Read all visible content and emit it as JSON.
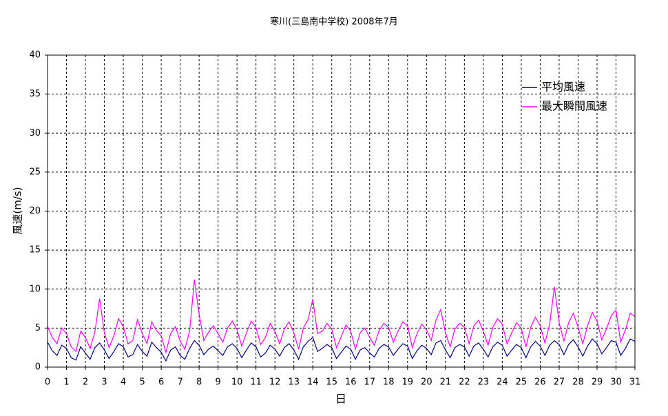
{
  "chart_data": {
    "type": "line",
    "title": "寒川(三島南中学校)  2008年7月",
    "x_label": "日",
    "y_label": "風速(m/s)",
    "xlim": [
      0,
      31
    ],
    "xticks": [
      0,
      1,
      2,
      3,
      4,
      5,
      6,
      7,
      8,
      9,
      10,
      11,
      12,
      13,
      14,
      15,
      16,
      17,
      18,
      19,
      20,
      21,
      22,
      23,
      24,
      25,
      26,
      27,
      28,
      29,
      30,
      31
    ],
    "ylim": [
      0,
      40
    ],
    "yticks": [
      0,
      5,
      10,
      15,
      20,
      25,
      30,
      35,
      40
    ],
    "grid": true,
    "legend": "upper-right",
    "x": [
      0,
      0.25,
      0.5,
      0.75,
      1,
      1.25,
      1.5,
      1.75,
      2,
      2.25,
      2.5,
      2.75,
      3,
      3.25,
      3.5,
      3.75,
      4,
      4.25,
      4.5,
      4.75,
      5,
      5.25,
      5.5,
      5.75,
      6,
      6.25,
      6.5,
      6.75,
      7,
      7.25,
      7.5,
      7.75,
      8,
      8.25,
      8.5,
      8.75,
      9,
      9.25,
      9.5,
      9.75,
      10,
      10.25,
      10.5,
      10.75,
      11,
      11.25,
      11.5,
      11.75,
      12,
      12.25,
      12.5,
      12.75,
      13,
      13.25,
      13.5,
      13.75,
      14,
      14.25,
      14.5,
      14.75,
      15,
      15.25,
      15.5,
      15.75,
      16,
      16.25,
      16.5,
      16.75,
      17,
      17.25,
      17.5,
      17.75,
      18,
      18.25,
      18.5,
      18.75,
      19,
      19.25,
      19.5,
      19.75,
      20,
      20.25,
      20.5,
      20.75,
      21,
      21.25,
      21.5,
      21.75,
      22,
      22.25,
      22.5,
      22.75,
      23,
      23.25,
      23.5,
      23.75,
      24,
      24.25,
      24.5,
      24.75,
      25,
      25.25,
      25.5,
      25.75,
      26,
      26.25,
      26.5,
      26.75,
      27,
      27.25,
      27.5,
      27.75,
      28,
      28.25,
      28.5,
      28.75,
      29,
      29.25,
      29.5,
      29.75,
      30,
      30.25,
      30.5,
      30.75,
      31
    ],
    "series": [
      {
        "name": "平均風速",
        "color": "#000080",
        "values": [
          3.2,
          2.1,
          1.5,
          2.8,
          2.4,
          1.2,
          0.9,
          2.6,
          1.8,
          1.0,
          2.5,
          3.1,
          2.2,
          1.1,
          2.0,
          3.0,
          2.6,
          1.3,
          1.6,
          2.9,
          2.0,
          1.4,
          3.2,
          2.5,
          1.9,
          0.8,
          2.2,
          2.6,
          1.5,
          1.0,
          2.4,
          3.4,
          2.8,
          1.6,
          2.3,
          2.7,
          2.1,
          1.5,
          2.6,
          3.0,
          2.4,
          1.2,
          2.2,
          3.1,
          2.6,
          1.3,
          1.8,
          2.8,
          2.3,
          1.4,
          2.5,
          3.0,
          2.2,
          1.0,
          2.6,
          3.3,
          3.8,
          2.0,
          2.4,
          2.9,
          2.5,
          1.1,
          1.9,
          2.7,
          2.3,
          1.0,
          2.2,
          2.5,
          1.8,
          1.3,
          2.4,
          2.9,
          2.6,
          1.5,
          2.3,
          3.0,
          2.7,
          1.1,
          2.1,
          2.8,
          2.4,
          1.6,
          3.1,
          3.4,
          2.2,
          1.2,
          2.5,
          2.9,
          2.6,
          1.4,
          2.7,
          3.1,
          2.3,
          1.3,
          2.6,
          3.2,
          2.8,
          1.4,
          2.2,
          2.9,
          2.5,
          1.2,
          2.6,
          3.3,
          2.7,
          1.5,
          2.8,
          3.4,
          2.9,
          1.6,
          2.9,
          3.5,
          2.6,
          1.4,
          2.7,
          3.6,
          3.0,
          1.7,
          2.5,
          3.4,
          3.2,
          1.5,
          2.4,
          3.6,
          3.3
        ]
      },
      {
        "name": "最大瞬間風速",
        "color": "#ff00ff",
        "values": [
          5.2,
          3.8,
          3.0,
          5.0,
          4.3,
          2.6,
          2.0,
          4.6,
          3.8,
          2.4,
          4.5,
          8.8,
          4.4,
          2.5,
          4.0,
          6.2,
          5.2,
          3.0,
          3.4,
          6.1,
          4.3,
          3.0,
          5.8,
          4.7,
          4.0,
          1.9,
          4.3,
          5.2,
          3.3,
          2.3,
          4.6,
          11.2,
          6.8,
          3.4,
          4.5,
          5.3,
          4.3,
          3.2,
          5.0,
          5.9,
          4.8,
          2.7,
          4.4,
          5.9,
          5.1,
          2.9,
          3.8,
          5.6,
          4.6,
          3.0,
          4.9,
          5.8,
          4.4,
          2.3,
          5.0,
          6.1,
          8.7,
          4.3,
          4.6,
          5.6,
          4.9,
          2.5,
          3.9,
          5.4,
          4.6,
          2.3,
          4.4,
          5.0,
          3.8,
          2.8,
          4.7,
          5.6,
          5.1,
          3.2,
          4.6,
          5.8,
          5.3,
          2.5,
          4.3,
          5.5,
          4.8,
          3.4,
          6.0,
          7.4,
          4.4,
          2.6,
          4.9,
          5.6,
          5.1,
          3.0,
          5.3,
          6.0,
          4.6,
          2.8,
          5.1,
          6.2,
          5.5,
          3.0,
          4.4,
          5.7,
          5.0,
          2.6,
          5.1,
          6.4,
          5.3,
          3.1,
          5.5,
          10.3,
          5.7,
          3.3,
          5.7,
          6.9,
          5.1,
          3.0,
          5.3,
          7.0,
          5.9,
          3.5,
          4.9,
          6.6,
          7.3,
          3.2,
          4.8,
          6.9,
          6.5
        ]
      }
    ]
  }
}
